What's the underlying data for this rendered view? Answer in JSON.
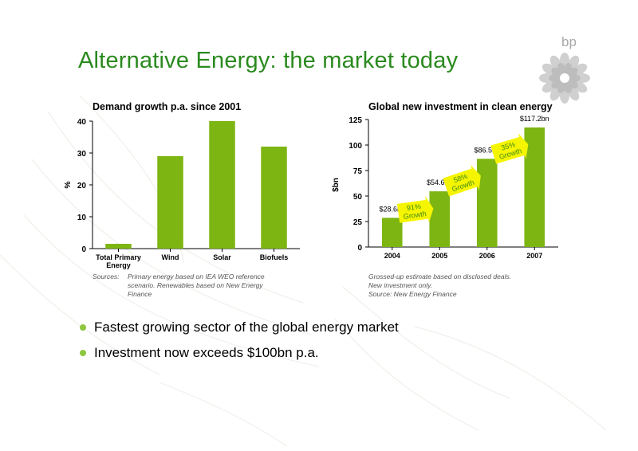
{
  "page": {
    "title": "Alternative Energy:  the market today",
    "logo_text": "bp"
  },
  "colors": {
    "title": "#2a8a1e",
    "bar": "#7db512",
    "bar_dark": "#5e8f0a",
    "arrow": "#f5f500",
    "arrow_text": "#3f8a16",
    "bullet": "#8dc63f"
  },
  "chart_data": [
    {
      "type": "bar",
      "title": "Demand growth p.a. since 2001",
      "ylabel": "%",
      "xlabel": "",
      "categories": [
        [
          "Total Primary",
          "Energy"
        ],
        [
          "Wind"
        ],
        [
          "Solar"
        ],
        [
          "Biofuels"
        ]
      ],
      "values": [
        1.5,
        29,
        40,
        32
      ],
      "ylim": [
        0,
        40
      ],
      "yticks": [
        "0",
        "10",
        "20",
        "30",
        "40"
      ],
      "grid": false
    },
    {
      "type": "bar",
      "title": "Global new investment in clean energy",
      "ylabel": "$bn",
      "xlabel": "",
      "categories": [
        [
          "2004"
        ],
        [
          "2005"
        ],
        [
          "2006"
        ],
        [
          "2007"
        ]
      ],
      "values": [
        28.6,
        54.6,
        86.5,
        117.2
      ],
      "data_labels": [
        "$28.6bn",
        "$54.6bn",
        "$86.5bn",
        "$117.2bn"
      ],
      "ylim": [
        0,
        125
      ],
      "yticks": [
        "0",
        "25",
        "50",
        "75",
        "100",
        "125"
      ],
      "growth_annotations": [
        [
          "91%",
          "Growth"
        ],
        [
          "58%",
          "Growth"
        ],
        [
          "35%",
          "Growth"
        ]
      ],
      "grid": false
    }
  ],
  "sources": {
    "left_label": "Sources:",
    "left_text": "Primary energy based on IEA WEO reference scenario. Renewables based on New Energy Finance",
    "right_lines": [
      "Grossed-up estimate based on disclosed deals.",
      "New investment only.",
      "Source: New Energy Finance"
    ]
  },
  "bullets": [
    "Fastest growing sector of the global energy market",
    "Investment now exceeds $100bn p.a."
  ]
}
